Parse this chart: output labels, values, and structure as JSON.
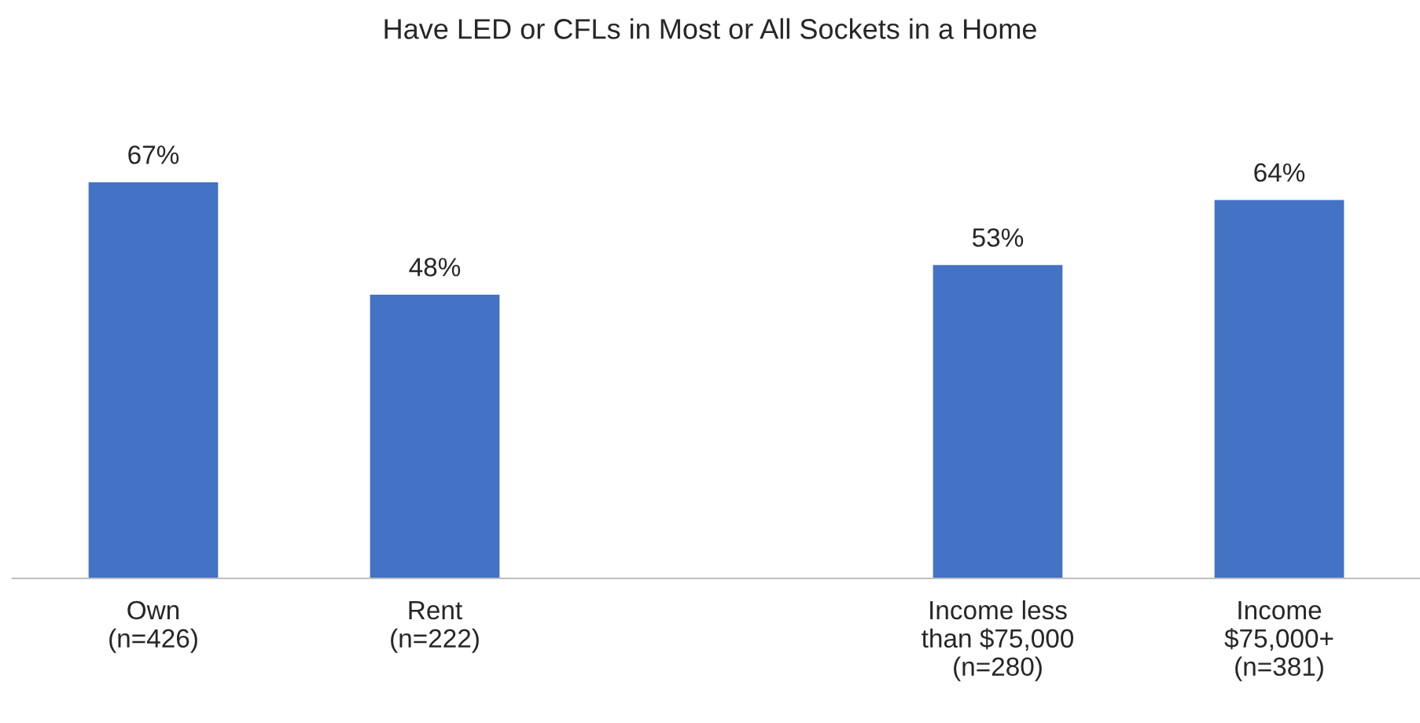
{
  "chart_data": {
    "type": "bar",
    "title": "Have LED or CFLs in Most or All Sockets in a Home",
    "categories": [
      "Own\n(n=426)",
      "Rent\n(n=222)",
      null,
      "Income less\nthan $75,000\n(n=280)",
      "Income\n$75,000+\n(n=381)"
    ],
    "values": [
      67,
      48,
      null,
      53,
      64
    ],
    "value_labels": [
      "67%",
      "48%",
      null,
      "53%",
      "64%"
    ],
    "color": "#4472c4",
    "tick_labels": "x"
  }
}
